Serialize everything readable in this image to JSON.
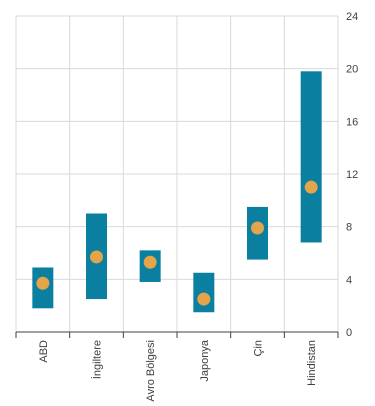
{
  "chart_data": {
    "type": "bar",
    "categories": [
      "ABD",
      "İngiltere",
      "Avro Bölgesi",
      "Japonya",
      "Çin",
      "Hindistan"
    ],
    "series": [
      {
        "type": "range",
        "low": [
          1.8,
          2.5,
          3.8,
          1.5,
          5.5,
          6.8
        ],
        "high": [
          4.9,
          9.0,
          6.2,
          4.5,
          9.5,
          19.8
        ],
        "color": "#0b7fa0"
      },
      {
        "type": "point",
        "values": [
          3.7,
          5.7,
          5.3,
          2.5,
          7.9,
          11.0
        ],
        "color": "#e3a44a"
      }
    ],
    "yticks": [
      0,
      4,
      8,
      12,
      16,
      20,
      24
    ],
    "ylim": [
      0,
      24
    ],
    "y_axis_side": "right",
    "grid": true,
    "legend": "none",
    "xlabel": "",
    "ylabel": "",
    "title": ""
  }
}
